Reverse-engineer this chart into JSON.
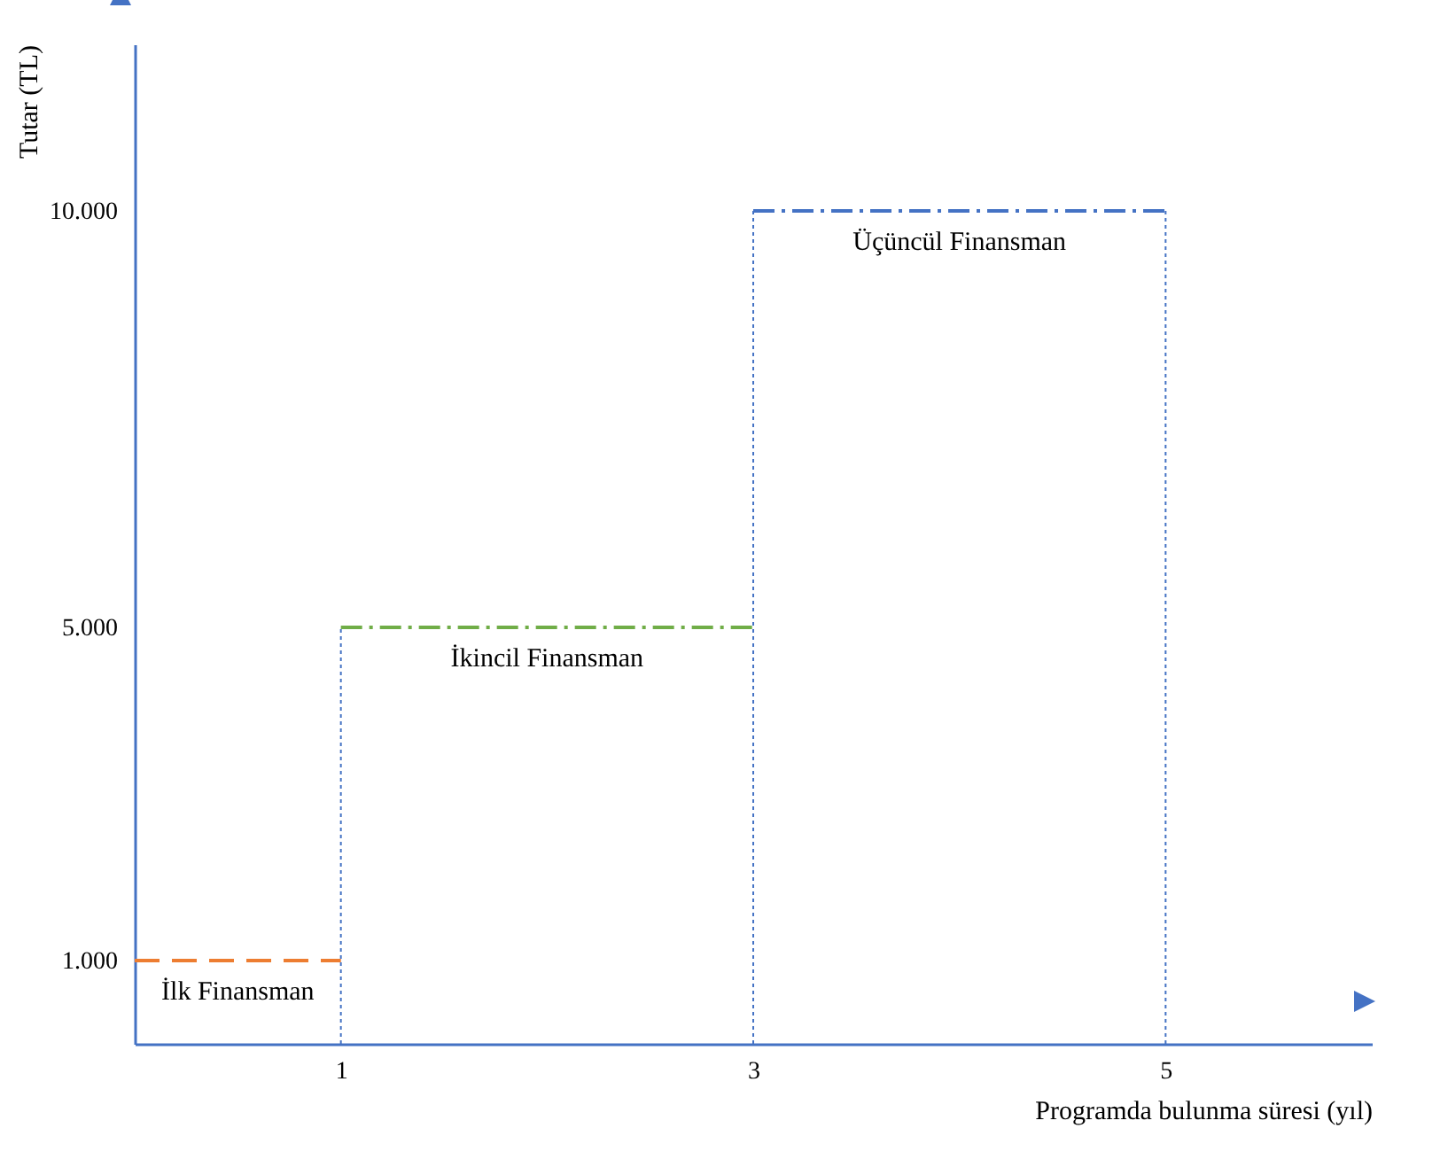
{
  "chart_data": {
    "type": "line",
    "xlabel": "Programda bulunma süresi (yıl)",
    "ylabel": "Tutar (TL)",
    "xlim": [
      0,
      6
    ],
    "xticks": [
      1,
      3,
      5
    ],
    "ylim": [
      0,
      12000
    ],
    "yticks": [
      {
        "value": 1000,
        "label": "1.000"
      },
      {
        "value": 5000,
        "label": "5.000"
      },
      {
        "value": 10000,
        "label": "10.000"
      }
    ],
    "grid": false,
    "marker": "none",
    "series": [
      {
        "name": "İlk Finansman",
        "color": "#ed7d31",
        "line_style": "dashed",
        "x": [
          0,
          1
        ],
        "values": [
          1000,
          1000
        ]
      },
      {
        "name": "İkincil Finansman",
        "color": "#70ad47",
        "line_style": "dashdot",
        "x": [
          1,
          3
        ],
        "values": [
          5000,
          5000
        ]
      },
      {
        "name": "Üçüncül Finansman",
        "color": "#4472c4",
        "line_style": "dashdot",
        "x": [
          3,
          5
        ],
        "values": [
          10000,
          10000
        ]
      },
      {
        "color": "#4472c4",
        "line_style": "dotted",
        "x": [
          1,
          1
        ],
        "values": [
          0,
          5000
        ]
      },
      {
        "color": "#4472c4",
        "line_style": "dotted",
        "x": [
          3,
          3
        ],
        "values": [
          0,
          10000
        ]
      },
      {
        "color": "#4472c4",
        "line_style": "dotted",
        "x": [
          5,
          5
        ],
        "values": [
          0,
          10000
        ]
      }
    ]
  }
}
